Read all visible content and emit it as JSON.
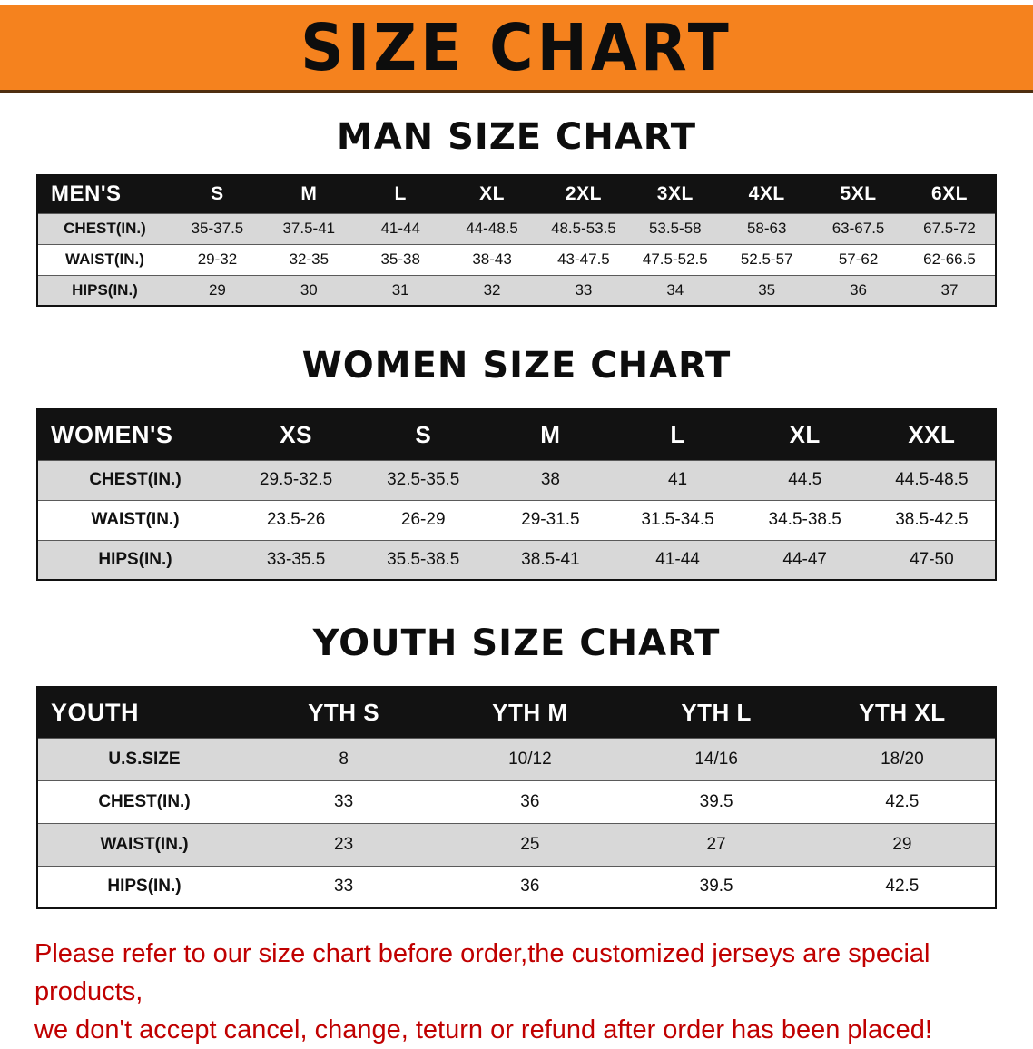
{
  "banner": {
    "title": "SIZE CHART",
    "bg_color": "#f5821e",
    "text_color": "#0d0d0d"
  },
  "colors": {
    "stripe_row": "#d8d8d8",
    "table_header_bg": "#121212",
    "note_red": "#c00000"
  },
  "sections": [
    {
      "heading": "MAN SIZE CHART",
      "corner_label": "MEN'S",
      "columns": [
        "S",
        "M",
        "L",
        "XL",
        "2XL",
        "3XL",
        "4XL",
        "5XL",
        "6XL"
      ],
      "rows": [
        {
          "label": "CHEST(IN.)",
          "values": [
            "35-37.5",
            "37.5-41",
            "41-44",
            "44-48.5",
            "48.5-53.5",
            "53.5-58",
            "58-63",
            "63-67.5",
            "67.5-72"
          ]
        },
        {
          "label": "WAIST(IN.)",
          "values": [
            "29-32",
            "32-35",
            "35-38",
            "38-43",
            "43-47.5",
            "47.5-52.5",
            "52.5-57",
            "57-62",
            "62-66.5"
          ]
        },
        {
          "label": "HIPS(IN.)",
          "values": [
            "29",
            "30",
            "31",
            "32",
            "33",
            "34",
            "35",
            "36",
            "37"
          ]
        }
      ]
    },
    {
      "heading": "WOMEN SIZE CHART",
      "corner_label": "WOMEN'S",
      "columns": [
        "XS",
        "S",
        "M",
        "L",
        "XL",
        "XXL"
      ],
      "rows": [
        {
          "label": "CHEST(IN.)",
          "values": [
            "29.5-32.5",
            "32.5-35.5",
            "38",
            "41",
            "44.5",
            "44.5-48.5"
          ]
        },
        {
          "label": "WAIST(IN.)",
          "values": [
            "23.5-26",
            "26-29",
            "29-31.5",
            "31.5-34.5",
            "34.5-38.5",
            "38.5-42.5"
          ]
        },
        {
          "label": "HIPS(IN.)",
          "values": [
            "33-35.5",
            "35.5-38.5",
            "38.5-41",
            "41-44",
            "44-47",
            "47-50"
          ]
        }
      ]
    },
    {
      "heading": "YOUTH SIZE CHART",
      "corner_label": "YOUTH",
      "columns": [
        "YTH S",
        "YTH M",
        "YTH L",
        "YTH XL"
      ],
      "rows": [
        {
          "label": "U.S.SIZE",
          "values": [
            "8",
            "10/12",
            "14/16",
            "18/20"
          ]
        },
        {
          "label": "CHEST(IN.)",
          "values": [
            "33",
            "36",
            "39.5",
            "42.5"
          ]
        },
        {
          "label": "WAIST(IN.)",
          "values": [
            "23",
            "25",
            "27",
            "29"
          ]
        },
        {
          "label": "HIPS(IN.)",
          "values": [
            "33",
            "36",
            "39.5",
            "42.5"
          ]
        }
      ]
    }
  ],
  "footer_note": {
    "lines": [
      "Please refer to our size chart before order,the customized jerseys are special products,",
      "we don't accept cancel, change, teturn or refund after order has been placed!"
    ]
  }
}
